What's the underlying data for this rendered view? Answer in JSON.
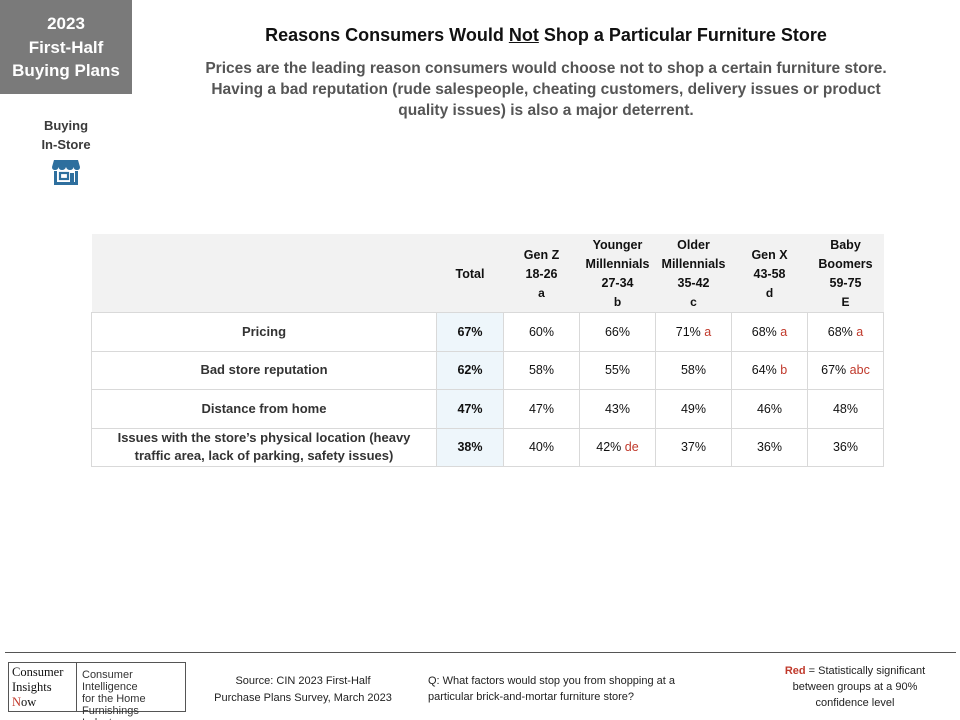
{
  "badge": {
    "line1": "2023",
    "line2": "First-Half",
    "line3": "Buying Plans"
  },
  "side": {
    "line1": "Buying",
    "line2": "In-Store",
    "icon": "storefront-icon",
    "icon_color": "#2e6f9e"
  },
  "title": {
    "before": "Reasons Consumers Would ",
    "underlined": "Not",
    "after": " Shop a Particular  Furniture Store"
  },
  "subtitle": {
    "line1": "Prices are the leading reason consumers would choose not to shop a certain furniture store.",
    "line2": "Having a bad reputation (rude salespeople, cheating customers, delivery issues or product",
    "line3": "quality issues) is also a major deterrent."
  },
  "table": {
    "columns": [
      {
        "lines": [
          "Total"
        ],
        "letter": ""
      },
      {
        "lines": [
          "Gen Z",
          "18-26"
        ],
        "letter": "a"
      },
      {
        "lines": [
          "Younger",
          "Millennials",
          "27-34"
        ],
        "letter": "b"
      },
      {
        "lines": [
          "Older",
          "Millennials",
          "35-42"
        ],
        "letter": "c"
      },
      {
        "lines": [
          "Gen X",
          "43-58"
        ],
        "letter": "d"
      },
      {
        "lines": [
          "Baby",
          "Boomers",
          "59-75"
        ],
        "letter": "E"
      }
    ],
    "rows": [
      {
        "label": "Pricing",
        "cells": [
          {
            "v": "67%",
            "sig": ""
          },
          {
            "v": "60%",
            "sig": ""
          },
          {
            "v": "66%",
            "sig": ""
          },
          {
            "v": "71%",
            "sig": "a"
          },
          {
            "v": "68%",
            "sig": "a"
          },
          {
            "v": "68%",
            "sig": "a"
          }
        ]
      },
      {
        "label": "Bad store reputation",
        "cells": [
          {
            "v": "62%",
            "sig": ""
          },
          {
            "v": "58%",
            "sig": ""
          },
          {
            "v": "55%",
            "sig": ""
          },
          {
            "v": "58%",
            "sig": ""
          },
          {
            "v": "64%",
            "sig": "b"
          },
          {
            "v": "67%",
            "sig": "abc"
          }
        ]
      },
      {
        "label": "Distance from home",
        "cells": [
          {
            "v": "47%",
            "sig": ""
          },
          {
            "v": "47%",
            "sig": ""
          },
          {
            "v": "43%",
            "sig": ""
          },
          {
            "v": "49%",
            "sig": ""
          },
          {
            "v": "46%",
            "sig": ""
          },
          {
            "v": "48%",
            "sig": ""
          }
        ]
      },
      {
        "label": "Issues with the store’s physical location (heavy traffic area, lack of parking, safety issues)",
        "cells": [
          {
            "v": "38%",
            "sig": ""
          },
          {
            "v": "40%",
            "sig": ""
          },
          {
            "v": "42%",
            "sig": "de"
          },
          {
            "v": "37%",
            "sig": ""
          },
          {
            "v": "36%",
            "sig": ""
          },
          {
            "v": "36%",
            "sig": ""
          }
        ]
      }
    ]
  },
  "footer": {
    "logo_left": {
      "l1": "Consumer",
      "l2": "Insights",
      "l3_initial": "N",
      "l3_rest": "ow"
    },
    "logo_right": {
      "l1": "Consumer Intelligence",
      "l2": "for the Home",
      "l3": "Furnishings Industry"
    },
    "source": {
      "l1": "Source:  CIN 2023 First-Half",
      "l2": "Purchase Plans Survey, March 2023"
    },
    "question": {
      "l1": "Q: What factors would stop you from shopping at a",
      "l2": "particular brick-and-mortar furniture store?"
    },
    "legend": {
      "red": "Red",
      "l1_rest": " = Statistically significant",
      "l2": "between  groups at a 90%",
      "l3": "confidence level"
    }
  },
  "colors": {
    "badge": "#7a7a7a",
    "significant": "#c0392b",
    "total_column": "#eef6fb",
    "header_bg": "#f2f2f2"
  }
}
